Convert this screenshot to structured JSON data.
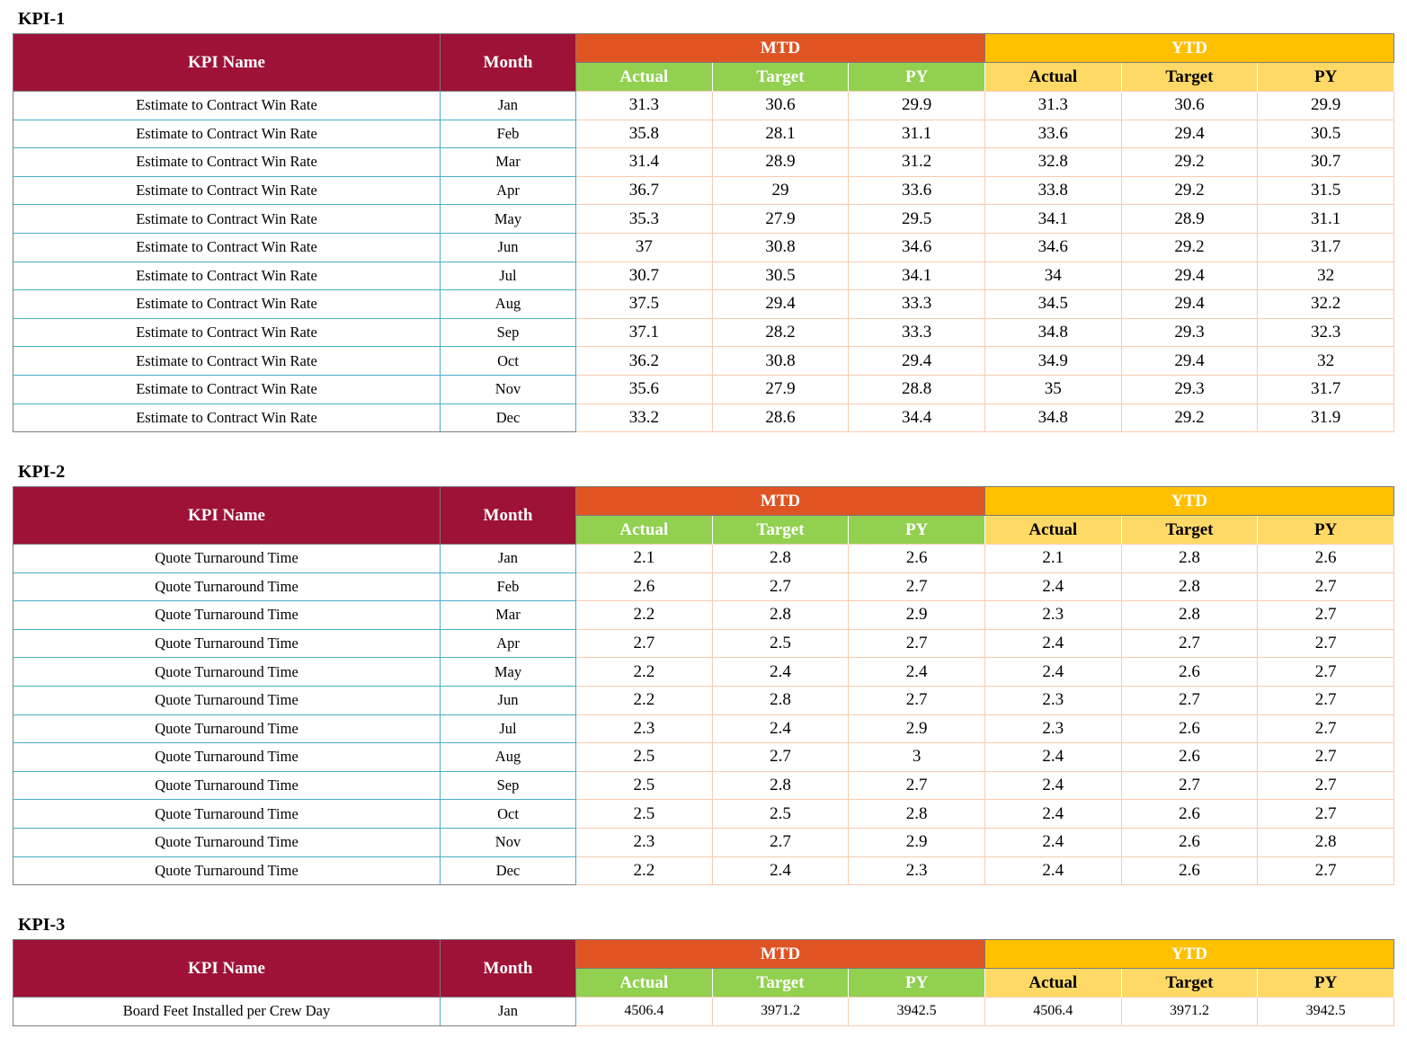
{
  "headers": {
    "kpi_name": "KPI Name",
    "month": "Month",
    "mtd": "MTD",
    "ytd": "YTD",
    "actual": "Actual",
    "target": "Target",
    "py": "PY"
  },
  "sections": [
    {
      "title": "KPI-1",
      "rows": [
        {
          "name": "Estimate to Contract Win Rate",
          "month": "Jan",
          "mtd_actual": "31.3",
          "mtd_target": "30.6",
          "mtd_py": "29.9",
          "ytd_actual": "31.3",
          "ytd_target": "30.6",
          "ytd_py": "29.9"
        },
        {
          "name": "Estimate to Contract Win Rate",
          "month": "Feb",
          "mtd_actual": "35.8",
          "mtd_target": "28.1",
          "mtd_py": "31.1",
          "ytd_actual": "33.6",
          "ytd_target": "29.4",
          "ytd_py": "30.5"
        },
        {
          "name": "Estimate to Contract Win Rate",
          "month": "Mar",
          "mtd_actual": "31.4",
          "mtd_target": "28.9",
          "mtd_py": "31.2",
          "ytd_actual": "32.8",
          "ytd_target": "29.2",
          "ytd_py": "30.7"
        },
        {
          "name": "Estimate to Contract Win Rate",
          "month": "Apr",
          "mtd_actual": "36.7",
          "mtd_target": "29",
          "mtd_py": "33.6",
          "ytd_actual": "33.8",
          "ytd_target": "29.2",
          "ytd_py": "31.5"
        },
        {
          "name": "Estimate to Contract Win Rate",
          "month": "May",
          "mtd_actual": "35.3",
          "mtd_target": "27.9",
          "mtd_py": "29.5",
          "ytd_actual": "34.1",
          "ytd_target": "28.9",
          "ytd_py": "31.1"
        },
        {
          "name": "Estimate to Contract Win Rate",
          "month": "Jun",
          "mtd_actual": "37",
          "mtd_target": "30.8",
          "mtd_py": "34.6",
          "ytd_actual": "34.6",
          "ytd_target": "29.2",
          "ytd_py": "31.7"
        },
        {
          "name": "Estimate to Contract Win Rate",
          "month": "Jul",
          "mtd_actual": "30.7",
          "mtd_target": "30.5",
          "mtd_py": "34.1",
          "ytd_actual": "34",
          "ytd_target": "29.4",
          "ytd_py": "32"
        },
        {
          "name": "Estimate to Contract Win Rate",
          "month": "Aug",
          "mtd_actual": "37.5",
          "mtd_target": "29.4",
          "mtd_py": "33.3",
          "ytd_actual": "34.5",
          "ytd_target": "29.4",
          "ytd_py": "32.2"
        },
        {
          "name": "Estimate to Contract Win Rate",
          "month": "Sep",
          "mtd_actual": "37.1",
          "mtd_target": "28.2",
          "mtd_py": "33.3",
          "ytd_actual": "34.8",
          "ytd_target": "29.3",
          "ytd_py": "32.3"
        },
        {
          "name": "Estimate to Contract Win Rate",
          "month": "Oct",
          "mtd_actual": "36.2",
          "mtd_target": "30.8",
          "mtd_py": "29.4",
          "ytd_actual": "34.9",
          "ytd_target": "29.4",
          "ytd_py": "32"
        },
        {
          "name": "Estimate to Contract Win Rate",
          "month": "Nov",
          "mtd_actual": "35.6",
          "mtd_target": "27.9",
          "mtd_py": "28.8",
          "ytd_actual": "35",
          "ytd_target": "29.3",
          "ytd_py": "31.7"
        },
        {
          "name": "Estimate to Contract Win Rate",
          "month": "Dec",
          "mtd_actual": "33.2",
          "mtd_target": "28.6",
          "mtd_py": "34.4",
          "ytd_actual": "34.8",
          "ytd_target": "29.2",
          "ytd_py": "31.9"
        }
      ]
    },
    {
      "title": "KPI-2",
      "rows": [
        {
          "name": "Quote Turnaround Time",
          "month": "Jan",
          "mtd_actual": "2.1",
          "mtd_target": "2.8",
          "mtd_py": "2.6",
          "ytd_actual": "2.1",
          "ytd_target": "2.8",
          "ytd_py": "2.6"
        },
        {
          "name": "Quote Turnaround Time",
          "month": "Feb",
          "mtd_actual": "2.6",
          "mtd_target": "2.7",
          "mtd_py": "2.7",
          "ytd_actual": "2.4",
          "ytd_target": "2.8",
          "ytd_py": "2.7"
        },
        {
          "name": "Quote Turnaround Time",
          "month": "Mar",
          "mtd_actual": "2.2",
          "mtd_target": "2.8",
          "mtd_py": "2.9",
          "ytd_actual": "2.3",
          "ytd_target": "2.8",
          "ytd_py": "2.7"
        },
        {
          "name": "Quote Turnaround Time",
          "month": "Apr",
          "mtd_actual": "2.7",
          "mtd_target": "2.5",
          "mtd_py": "2.7",
          "ytd_actual": "2.4",
          "ytd_target": "2.7",
          "ytd_py": "2.7"
        },
        {
          "name": "Quote Turnaround Time",
          "month": "May",
          "mtd_actual": "2.2",
          "mtd_target": "2.4",
          "mtd_py": "2.4",
          "ytd_actual": "2.4",
          "ytd_target": "2.6",
          "ytd_py": "2.7"
        },
        {
          "name": "Quote Turnaround Time",
          "month": "Jun",
          "mtd_actual": "2.2",
          "mtd_target": "2.8",
          "mtd_py": "2.7",
          "ytd_actual": "2.3",
          "ytd_target": "2.7",
          "ytd_py": "2.7"
        },
        {
          "name": "Quote Turnaround Time",
          "month": "Jul",
          "mtd_actual": "2.3",
          "mtd_target": "2.4",
          "mtd_py": "2.9",
          "ytd_actual": "2.3",
          "ytd_target": "2.6",
          "ytd_py": "2.7"
        },
        {
          "name": "Quote Turnaround Time",
          "month": "Aug",
          "mtd_actual": "2.5",
          "mtd_target": "2.7",
          "mtd_py": "3",
          "ytd_actual": "2.4",
          "ytd_target": "2.6",
          "ytd_py": "2.7"
        },
        {
          "name": "Quote Turnaround Time",
          "month": "Sep",
          "mtd_actual": "2.5",
          "mtd_target": "2.8",
          "mtd_py": "2.7",
          "ytd_actual": "2.4",
          "ytd_target": "2.7",
          "ytd_py": "2.7"
        },
        {
          "name": "Quote Turnaround Time",
          "month": "Oct",
          "mtd_actual": "2.5",
          "mtd_target": "2.5",
          "mtd_py": "2.8",
          "ytd_actual": "2.4",
          "ytd_target": "2.6",
          "ytd_py": "2.7"
        },
        {
          "name": "Quote Turnaround Time",
          "month": "Nov",
          "mtd_actual": "2.3",
          "mtd_target": "2.7",
          "mtd_py": "2.9",
          "ytd_actual": "2.4",
          "ytd_target": "2.6",
          "ytd_py": "2.8"
        },
        {
          "name": "Quote Turnaround Time",
          "month": "Dec",
          "mtd_actual": "2.2",
          "mtd_target": "2.4",
          "mtd_py": "2.3",
          "ytd_actual": "2.4",
          "ytd_target": "2.6",
          "ytd_py": "2.7"
        }
      ]
    },
    {
      "title": "KPI-3",
      "rows": [
        {
          "name": "Board Feet Installed per Crew Day",
          "month": "Jan",
          "mtd_actual": "4506.4",
          "mtd_target": "3971.2",
          "mtd_py": "3942.5",
          "ytd_actual": "4506.4",
          "ytd_target": "3971.2",
          "ytd_py": "3942.5"
        }
      ]
    }
  ]
}
